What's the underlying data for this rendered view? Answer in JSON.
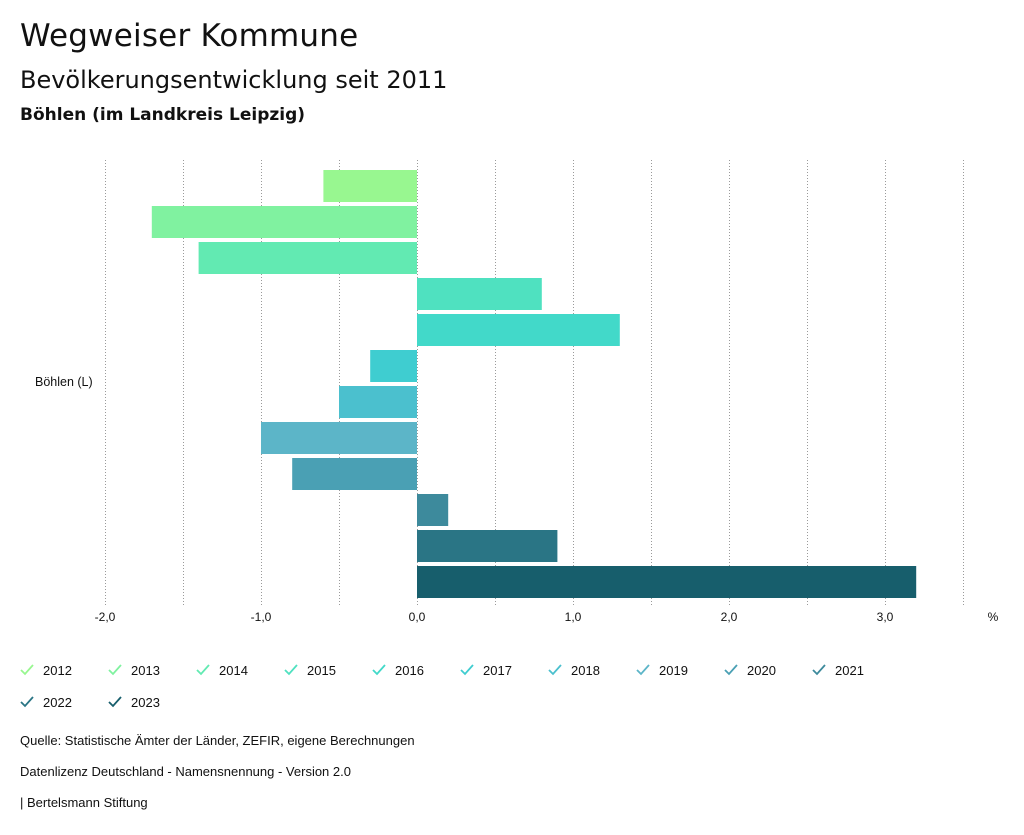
{
  "header": {
    "title": "Wegweiser Kommune",
    "subtitle": "Bevölkerungsentwicklung seit 2011",
    "region": "Böhlen (im Landkreis Leipzig)"
  },
  "chart_data": {
    "type": "bar",
    "orientation": "horizontal",
    "categories": [
      "Böhlen (L)"
    ],
    "series": [
      {
        "name": "2012",
        "values": [
          -0.6
        ],
        "color": "#98f790"
      },
      {
        "name": "2013",
        "values": [
          -1.7
        ],
        "color": "#80f2a0"
      },
      {
        "name": "2014",
        "values": [
          -1.4
        ],
        "color": "#62eab2"
      },
      {
        "name": "2015",
        "values": [
          0.8
        ],
        "color": "#4fe1c0"
      },
      {
        "name": "2016",
        "values": [
          1.3
        ],
        "color": "#42d9c9"
      },
      {
        "name": "2017",
        "values": [
          -0.3
        ],
        "color": "#3fcdd0"
      },
      {
        "name": "2018",
        "values": [
          -0.5
        ],
        "color": "#4bc0ce"
      },
      {
        "name": "2019",
        "values": [
          -1.0
        ],
        "color": "#5cb5c8"
      },
      {
        "name": "2020",
        "values": [
          -0.8
        ],
        "color": "#4aa0b4"
      },
      {
        "name": "2021",
        "values": [
          0.2
        ],
        "color": "#3d8a9c"
      },
      {
        "name": "2022",
        "values": [
          0.9
        ],
        "color": "#2a7585"
      },
      {
        "name": "2023",
        "values": [
          3.2
        ],
        "color": "#175e6c"
      }
    ],
    "xlim": [
      -2.0,
      3.5
    ],
    "xticks": [
      "-2,0",
      "-1,0",
      "0,0",
      "1,0",
      "2,0",
      "3,0"
    ],
    "xlabel": "%",
    "grid": true,
    "legend_position": "bottom"
  },
  "footer": {
    "source": "Quelle: Statistische Ämter der Länder, ZEFIR, eigene Berechnungen",
    "license": "Datenlizenz Deutschland - Namensnennung - Version 2.0",
    "publisher": "| Bertelsmann Stiftung"
  }
}
